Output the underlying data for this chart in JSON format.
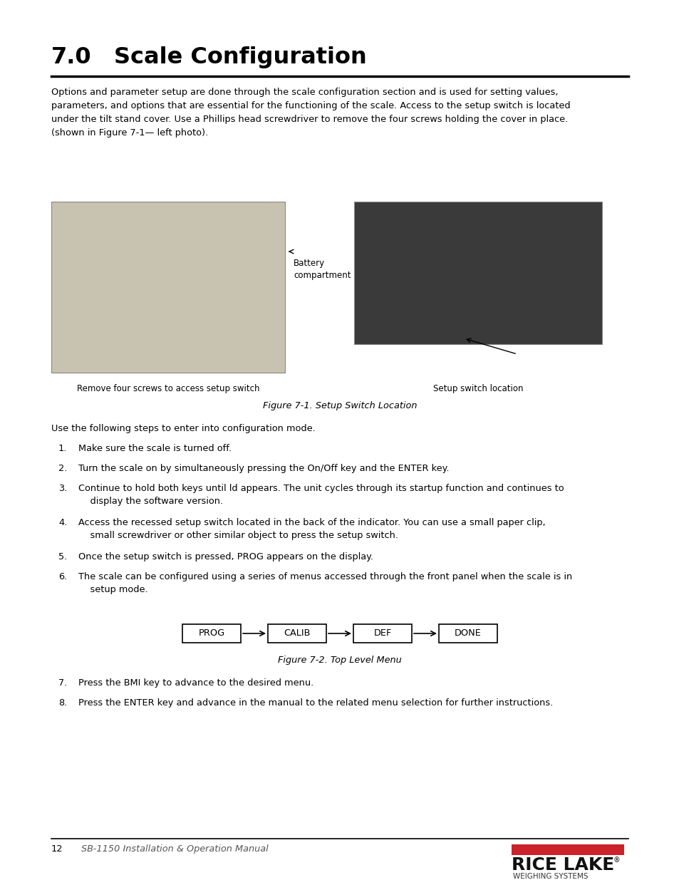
{
  "bg_color": "#ffffff",
  "title_num": "7.0",
  "title_text": "Scale Configuration",
  "intro_text": "Options and parameter setup are done through the scale configuration section and is used for setting values,\nparameters, and options that are essential for the functioning of the scale. Access to the setup switch is located\nunder the tilt stand cover. Use a Phillips head screwdriver to remove the four screws holding the cover in place.\n(shown in Figure 7-1— left photo).",
  "battery_label": "Battery\ncompartment",
  "fig1_caption_left": "Remove four screws to access setup switch",
  "fig1_caption_right": "Setup switch location",
  "fig1_title": "Figure 7-1. Setup Switch Location",
  "steps_intro": "Use the following steps to enter into configuration mode.",
  "steps": [
    "Make sure the scale is turned off.",
    "Turn the scale on by simultaneously pressing the On/Off key and the ENTER key.",
    "Continue to hold both keys until ld appears. The unit cycles through its startup function and continues to\n    display the software version.",
    "Access the recessed setup switch located in the back of the indicator. You can use a small paper clip,\n    small screwdriver or other similar object to press the setup switch.",
    "Once the setup switch is pressed, PROG appears on the display.",
    "The scale can be configured using a series of menus accessed through the front panel when the scale is in\n    setup mode."
  ],
  "menu_items": [
    "PROG",
    "CALIB",
    "DEF",
    "DONE"
  ],
  "fig2_title": "Figure 7-2. Top Level Menu",
  "step7": "Press the BMI key to advance to the desired menu.",
  "step8": "Press the ENTER key and advance in the manual to the related menu selection for further instructions.",
  "page_num": "12",
  "page_subtitle": "SB-1150 Installation & Operation Manual",
  "rice_lake_red": "#cc2229",
  "rice_lake_text": "RICE LAKE",
  "weighing_text": "WEIGHING SYSTEMS"
}
